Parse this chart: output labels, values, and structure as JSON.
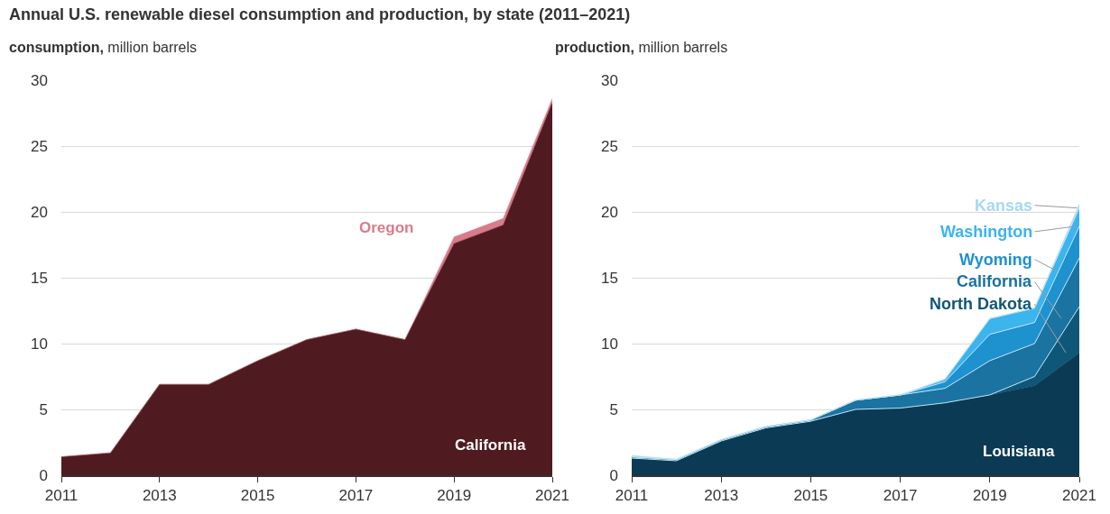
{
  "chart_data": [
    {
      "type": "area",
      "title": "Annual U.S. renewable diesel consumption and production, by state (2011–2021)",
      "ylabel": "consumption, million barrels",
      "stacked": true,
      "x": [
        2011,
        2012,
        2013,
        2014,
        2015,
        2016,
        2017,
        2018,
        2019,
        2020,
        2021
      ],
      "xlim": [
        2011,
        2021
      ],
      "xticks": [
        2011,
        2013,
        2015,
        2017,
        2019,
        2021
      ],
      "ylim": [
        0,
        30
      ],
      "yticks": [
        0,
        5,
        10,
        15,
        20,
        25,
        30
      ],
      "grid": "y",
      "legend": false,
      "series": [
        {
          "name": "California",
          "color": "#4f1a20",
          "values": [
            1.4,
            1.7,
            6.9,
            6.9,
            8.7,
            10.3,
            11.1,
            10.3,
            17.6,
            19.0,
            28.3
          ]
        },
        {
          "name": "Oregon",
          "color": "#d97b8a",
          "values": [
            0,
            0,
            0,
            0,
            0,
            0,
            0,
            0,
            0.5,
            0.5,
            0.3
          ]
        }
      ]
    },
    {
      "type": "area",
      "ylabel": "production, million barrels",
      "stacked": true,
      "x": [
        2011,
        2012,
        2013,
        2014,
        2015,
        2016,
        2017,
        2018,
        2019,
        2020,
        2021
      ],
      "xlim": [
        2011,
        2021
      ],
      "xticks": [
        2011,
        2013,
        2015,
        2017,
        2019,
        2021
      ],
      "ylim": [
        0,
        30
      ],
      "yticks": [
        0,
        5,
        10,
        15,
        20,
        25,
        30
      ],
      "grid": "y",
      "legend": false,
      "series": [
        {
          "name": "Louisiana",
          "color": "#0b3a54",
          "values": [
            1.3,
            1.1,
            2.6,
            3.6,
            4.1,
            5.0,
            5.1,
            5.5,
            6.1,
            6.8,
            9.3
          ]
        },
        {
          "name": "North Dakota",
          "color": "#0f5778",
          "values": [
            0,
            0,
            0,
            0,
            0,
            0,
            0,
            0,
            0,
            0.7,
            3.5
          ]
        },
        {
          "name": "California",
          "color": "#1a73a0",
          "values": [
            0.1,
            0.1,
            0.1,
            0.1,
            0.1,
            0.7,
            1.0,
            1.1,
            2.6,
            2.5,
            3.7
          ]
        },
        {
          "name": "Wyoming",
          "color": "#1e91cf",
          "values": [
            0,
            0,
            0,
            0,
            0,
            0,
            0,
            0.5,
            2.0,
            1.6,
            2.4
          ]
        },
        {
          "name": "Washington",
          "color": "#3cb4ee",
          "values": [
            0,
            0,
            0,
            0,
            0,
            0,
            0,
            0.2,
            1.2,
            1.1,
            1.4
          ]
        },
        {
          "name": "Kansas",
          "color": "#a5d8f5",
          "values": [
            0.1,
            0,
            0,
            0,
            0,
            0,
            0,
            0,
            0,
            0,
            0.3
          ]
        }
      ]
    }
  ]
}
